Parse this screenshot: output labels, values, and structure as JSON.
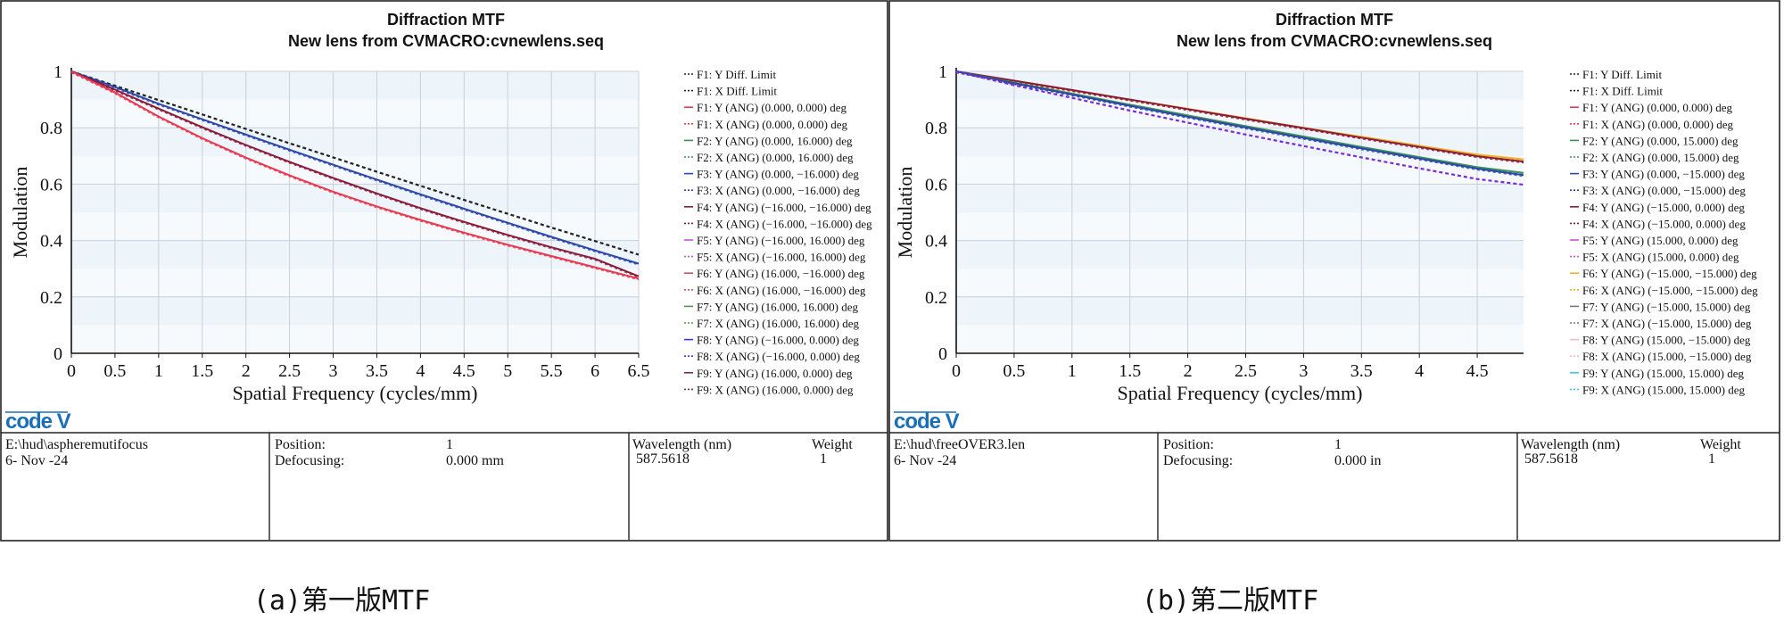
{
  "chart_data": [
    {
      "type": "line",
      "title": "Diffraction MTF",
      "subtitle": "New lens from CVMACRO:cvnewlens.seq",
      "xlabel": "Spatial Frequency (cycles/mm)",
      "ylabel": "Modulation",
      "xlim": [
        0,
        6.5
      ],
      "ylim": [
        0,
        1
      ],
      "xticks": [
        "0",
        "0.5",
        "1",
        "1.5",
        "2",
        "2.5",
        "3",
        "3.5",
        "4",
        "4.5",
        "5",
        "5.5",
        "6",
        "6.5"
      ],
      "yticks": [
        "0",
        "0.2",
        "0.4",
        "0.6",
        "0.8",
        "1"
      ],
      "legend": [
        {
          "label": "F1: Y Diff. Limit",
          "color": "#222222",
          "dash": true
        },
        {
          "label": "F1: X Diff. Limit",
          "color": "#222222",
          "dash": true
        },
        {
          "label": "F1: Y (ANG) (0.000, 0.000) deg",
          "color": "#e8384f",
          "dash": false
        },
        {
          "label": "F1: X (ANG) (0.000, 0.000) deg",
          "color": "#e8384f",
          "dash": true
        },
        {
          "label": "F2: Y (ANG) (0.000, 16.000) deg",
          "color": "#3a8f5a",
          "dash": false
        },
        {
          "label": "F2: X (ANG) (0.000, 16.000) deg",
          "color": "#3a8f5a",
          "dash": true
        },
        {
          "label": "F3: Y (ANG) (0.000, −16.000) deg",
          "color": "#2b45a8",
          "dash": false
        },
        {
          "label": "F3: X (ANG) (0.000, −16.000) deg",
          "color": "#2b45a8",
          "dash": true
        },
        {
          "label": "F4: Y (ANG) (−16.000, −16.000) deg",
          "color": "#8b1a3a",
          "dash": false
        },
        {
          "label": "F4: X (ANG) (−16.000, −16.000) deg",
          "color": "#8b1a3a",
          "dash": true
        },
        {
          "label": "F5: Y (ANG) (−16.000, 16.000) deg",
          "color": "#d04fd8",
          "dash": false
        },
        {
          "label": "F5: X (ANG) (−16.000, 16.000) deg",
          "color": "#d04fd8",
          "dash": true
        },
        {
          "label": "F6: Y (ANG) (16.000, −16.000) deg",
          "color": "#d0504f",
          "dash": false
        },
        {
          "label": "F6: X (ANG) (16.000, −16.000) deg",
          "color": "#d0504f",
          "dash": true
        },
        {
          "label": "F7: Y (ANG) (16.000, 16.000) deg",
          "color": "#4a9a4a",
          "dash": false
        },
        {
          "label": "F7: X (ANG) (16.000, 16.000) deg",
          "color": "#4a9a4a",
          "dash": true
        },
        {
          "label": "F8: Y (ANG) (−16.000, 0.000) deg",
          "color": "#3a3ad8",
          "dash": false
        },
        {
          "label": "F8: X (ANG) (−16.000, 0.000) deg",
          "color": "#3a3ad8",
          "dash": true
        },
        {
          "label": "F9: Y (ANG) (16.000, 0.000) deg",
          "color": "#7a2a5a",
          "dash": false
        },
        {
          "label": "F9: X (ANG) (16.000, 0.000) deg",
          "color": "#7a2a5a",
          "dash": true
        }
      ],
      "series": [
        {
          "name": "Diff. Limit",
          "color": "#222222",
          "dash": true,
          "x": [
            0,
            0.5,
            1,
            1.5,
            2,
            2.5,
            3,
            3.5,
            4,
            4.5,
            5,
            5.5,
            6,
            6.5
          ],
          "y": [
            1,
            0.949,
            0.898,
            0.847,
            0.796,
            0.745,
            0.695,
            0.644,
            0.594,
            0.544,
            0.495,
            0.446,
            0.398,
            0.35
          ]
        },
        {
          "name": "F3 (0.000, −16.000)",
          "color": "#2b45a8",
          "dash": false,
          "x": [
            0,
            0.5,
            1,
            1.5,
            2,
            2.5,
            3,
            3.5,
            4,
            4.5,
            5,
            5.5,
            6,
            6.5
          ],
          "y": [
            1,
            0.945,
            0.885,
            0.83,
            0.776,
            0.722,
            0.669,
            0.616,
            0.564,
            0.513,
            0.463,
            0.413,
            0.365,
            0.318
          ]
        },
        {
          "name": "F4 (−16.000, −16.000)",
          "color": "#8b1a3a",
          "dash": false,
          "x": [
            0,
            0.5,
            1,
            1.5,
            2,
            2.5,
            3,
            3.5,
            4,
            4.5,
            5,
            5.5,
            6,
            6.5
          ],
          "y": [
            1,
            0.935,
            0.868,
            0.802,
            0.739,
            0.679,
            0.622,
            0.567,
            0.515,
            0.466,
            0.42,
            0.376,
            0.335,
            0.273
          ]
        },
        {
          "name": "F1 (0.000, 0.000)",
          "color": "#e8384f",
          "dash": false,
          "x": [
            0,
            0.5,
            1,
            1.5,
            2,
            2.5,
            3,
            3.5,
            4,
            4.5,
            5,
            5.5,
            6,
            6.5
          ],
          "y": [
            1,
            0.925,
            0.84,
            0.763,
            0.694,
            0.631,
            0.573,
            0.521,
            0.473,
            0.428,
            0.385,
            0.345,
            0.305,
            0.265
          ]
        }
      ],
      "info": {
        "file": "E:\\hud\\aspheremutifocus",
        "date": "6- Nov -24",
        "position_label": "Position:",
        "position_value": "1",
        "defocus_label": "Defocusing:",
        "defocus_value": "0.000 mm",
        "wavelength_label": "Wavelength (nm)",
        "wavelength_value": "587.5618",
        "weight_label": "Weight",
        "weight_value": "1"
      },
      "caption": "(a)第一版MTF",
      "logo": "code V"
    },
    {
      "type": "line",
      "title": "Diffraction MTF",
      "subtitle": "New lens from CVMACRO:cvnewlens.seq",
      "xlabel": "Spatial Frequency (cycles/mm)",
      "ylabel": "Modulation",
      "xlim": [
        0,
        4.9
      ],
      "ylim": [
        0,
        1
      ],
      "xticks": [
        "0",
        "0.5",
        "1",
        "1.5",
        "2",
        "2.5",
        "3",
        "3.5",
        "4",
        "4.5"
      ],
      "yticks": [
        "0",
        "0.2",
        "0.4",
        "0.6",
        "0.8",
        "1"
      ],
      "legend": [
        {
          "label": "F1: Y Diff. Limit",
          "color": "#222222",
          "dash": true
        },
        {
          "label": "F1: X Diff. Limit",
          "color": "#222222",
          "dash": true
        },
        {
          "label": "F1: Y (ANG) (0.000, 0.000) deg",
          "color": "#e8384f",
          "dash": false
        },
        {
          "label": "F1: X (ANG) (0.000, 0.000) deg",
          "color": "#e8384f",
          "dash": true
        },
        {
          "label": "F2: Y (ANG) (0.000, 15.000) deg",
          "color": "#3a8f5a",
          "dash": false
        },
        {
          "label": "F2: X (ANG) (0.000, 15.000) deg",
          "color": "#3a8f5a",
          "dash": true
        },
        {
          "label": "F3: Y (ANG) (0.000, −15.000) deg",
          "color": "#2b45a8",
          "dash": false
        },
        {
          "label": "F3: X (ANG) (0.000, −15.000) deg",
          "color": "#2b45a8",
          "dash": true
        },
        {
          "label": "F4: Y (ANG) (−15.000, 0.000) deg",
          "color": "#8b1a3a",
          "dash": false
        },
        {
          "label": "F4: X (ANG) (−15.000, 0.000) deg",
          "color": "#8b1a3a",
          "dash": true
        },
        {
          "label": "F5: Y (ANG) (15.000, 0.000) deg",
          "color": "#d04fd8",
          "dash": false
        },
        {
          "label": "F5: X (ANG) (15.000, 0.000) deg",
          "color": "#d04fd8",
          "dash": true
        },
        {
          "label": "F6: Y (ANG) (−15.000, −15.000) deg",
          "color": "#f0b020",
          "dash": false
        },
        {
          "label": "F6: X (ANG) (−15.000, −15.000) deg",
          "color": "#f0b020",
          "dash": true
        },
        {
          "label": "F7: Y (ANG) (−15.000, 15.000) deg",
          "color": "#777777",
          "dash": false
        },
        {
          "label": "F7: X (ANG) (−15.000, 15.000) deg",
          "color": "#777777",
          "dash": true
        },
        {
          "label": "F8: Y (ANG) (15.000, −15.000) deg",
          "color": "#f0b8c8",
          "dash": false
        },
        {
          "label": "F8: X (ANG) (15.000, −15.000) deg",
          "color": "#f0b8c8",
          "dash": true
        },
        {
          "label": "F9: Y (ANG) (15.000, 15.000) deg",
          "color": "#40c8e0",
          "dash": false
        },
        {
          "label": "F9: X (ANG) (15.000, 15.000) deg",
          "color": "#40c8e0",
          "dash": true
        }
      ],
      "series": [
        {
          "name": "F6 (−15.000, −15.000)",
          "color": "#f0b020",
          "dash": false,
          "x": [
            0,
            0.5,
            1,
            1.5,
            2,
            2.5,
            3,
            3.5,
            4,
            4.5,
            4.9
          ],
          "y": [
            1,
            0.966,
            0.933,
            0.9,
            0.867,
            0.834,
            0.8,
            0.768,
            0.736,
            0.705,
            0.688
          ]
        },
        {
          "name": "F1 (0.000, 0.000)",
          "color": "#8b1a3a",
          "dash": false,
          "x": [
            0,
            0.5,
            1,
            1.5,
            2,
            2.5,
            3,
            3.5,
            4,
            4.5,
            4.9
          ],
          "y": [
            1,
            0.967,
            0.934,
            0.9,
            0.866,
            0.832,
            0.799,
            0.765,
            0.732,
            0.699,
            0.68
          ]
        },
        {
          "name": "F2 (0.000, 15.000)",
          "color": "#3a8f5a",
          "dash": false,
          "x": [
            0,
            0.5,
            1,
            1.5,
            2,
            2.5,
            3,
            3.5,
            4,
            4.5,
            4.9
          ],
          "y": [
            1,
            0.96,
            0.921,
            0.882,
            0.844,
            0.806,
            0.769,
            0.732,
            0.696,
            0.66,
            0.64
          ]
        },
        {
          "name": "F3 (0.000, −15.000)",
          "color": "#2b45a8",
          "dash": false,
          "x": [
            0,
            0.5,
            1,
            1.5,
            2,
            2.5,
            3,
            3.5,
            4,
            4.5,
            4.9
          ],
          "y": [
            1,
            0.958,
            0.918,
            0.878,
            0.839,
            0.801,
            0.764,
            0.727,
            0.691,
            0.655,
            0.632
          ]
        },
        {
          "name": "F5 X (15.000, 0.000)",
          "color": "#7a2ad8",
          "dash": true,
          "x": [
            0,
            0.5,
            1,
            1.5,
            2,
            2.5,
            3,
            3.5,
            4,
            4.5,
            4.9
          ],
          "y": [
            1,
            0.951,
            0.906,
            0.861,
            0.818,
            0.776,
            0.735,
            0.695,
            0.656,
            0.618,
            0.598
          ]
        }
      ],
      "info": {
        "file": "E:\\hud\\freeOVER3.len",
        "date": "6- Nov -24",
        "position_label": "Position:",
        "position_value": "1",
        "defocus_label": "Defocusing:",
        "defocus_value": "0.000 in",
        "wavelength_label": "Wavelength (nm)",
        "wavelength_value": "587.5618",
        "weight_label": "Weight",
        "weight_value": "1"
      },
      "caption": "(b)第二版MTF",
      "logo": "code V"
    }
  ]
}
